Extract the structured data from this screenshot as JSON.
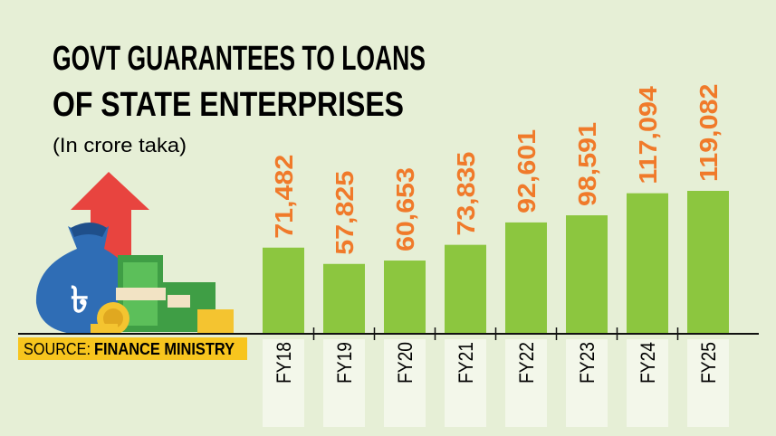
{
  "chart_data": {
    "type": "bar",
    "title": [
      "GOVT GUARANTEES TO LOANS",
      "OF STATE ENTERPRISES"
    ],
    "subtitle": "(In crore taka)",
    "source": {
      "label": "SOURCE:",
      "text": "FINANCE MINISTRY"
    },
    "categories": [
      "FY18",
      "FY19",
      "FY20",
      "FY21",
      "FY22",
      "FY23",
      "FY24",
      "FY25"
    ],
    "values": [
      71482,
      57825,
      60653,
      73835,
      92601,
      98591,
      117094,
      119082
    ],
    "value_labels": [
      "71,482",
      "57,825",
      "60,653",
      "73,835",
      "92,601",
      "98,591",
      "117,094",
      "119,082"
    ],
    "color": "#8cc63f",
    "label_color": "#f07a2a"
  }
}
